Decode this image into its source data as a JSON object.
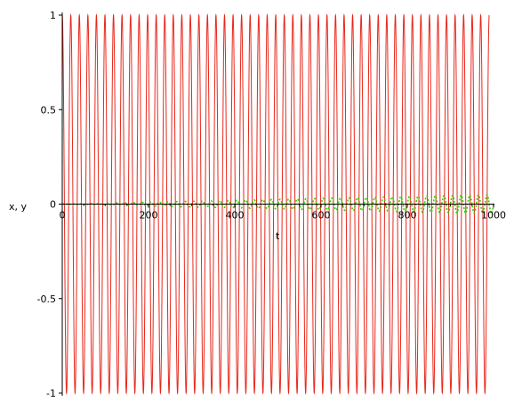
{
  "chart_data": {
    "type": "line",
    "xlabel": "t",
    "ylabel": "x, y",
    "xlim": [
      0,
      1000
    ],
    "ylim": [
      -1,
      1
    ],
    "x_ticks": [
      {
        "value": 0,
        "label": "0"
      },
      {
        "value": 200,
        "label": "200"
      },
      {
        "value": 400,
        "label": "400"
      },
      {
        "value": 600,
        "label": "600"
      },
      {
        "value": 800,
        "label": "800"
      },
      {
        "value": 1000,
        "label": "1000"
      }
    ],
    "y_ticks": [
      {
        "value": 1,
        "label": "1"
      },
      {
        "value": 0.5,
        "label": "0.5"
      },
      {
        "value": 0,
        "label": "0"
      },
      {
        "value": -0.5,
        "label": "-0.5"
      },
      {
        "value": -1,
        "label": "-1"
      }
    ],
    "grid": false,
    "legend": "none",
    "series": [
      {
        "color": "#e8271b",
        "style": "solid",
        "function": "sinusoid",
        "amplitude": 1.0,
        "cycles": 50,
        "t_range": [
          0,
          990
        ]
      },
      {
        "color": "#33cc00",
        "style": "dotted",
        "function": "growing sinusoid",
        "amplitude_start": 0.0,
        "amplitude_end": 0.05,
        "cycles": 50,
        "t_range": [
          0,
          1000
        ]
      }
    ]
  }
}
